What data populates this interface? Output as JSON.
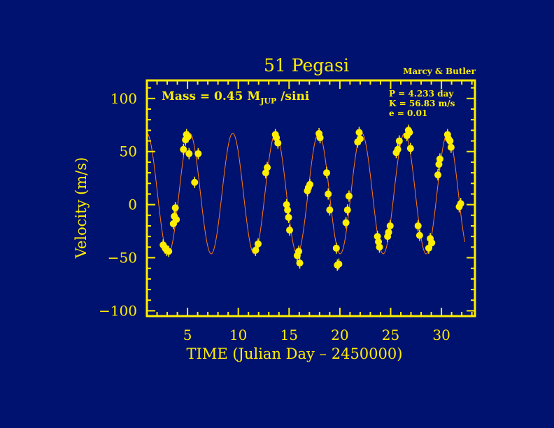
{
  "colors": {
    "background": "#001270",
    "axes": "#ffee00",
    "points": "#ffee00",
    "fit_curve": "#ff7a10"
  },
  "header": {
    "title": "51 Pegasi",
    "credit": "Marcy & Butler"
  },
  "annotations": {
    "mass_text": "Mass = 0.45 M",
    "mass_subscript": "JUP",
    "mass_suffix": " /sini",
    "period": "P = 4.233 day",
    "amplitude": "K = 56.83 m/s",
    "eccentricity": "e = 0.01"
  },
  "chart_data": {
    "type": "scatter",
    "title": "51 Pegasi",
    "xlabel": "TIME  (Julian Day – 2450000)",
    "ylabel": "Velocity  (m/s)",
    "xlim": [
      1,
      33.3
    ],
    "ylim": [
      -105,
      117
    ],
    "x_ticks": [
      5,
      10,
      15,
      20,
      25,
      30
    ],
    "y_ticks": [
      -100,
      -50,
      0,
      50,
      100
    ],
    "x_tick_labels": [
      "5",
      "10",
      "15",
      "20",
      "25",
      "30"
    ],
    "y_tick_labels": [
      "−100",
      "−50",
      "0",
      "50",
      "100"
    ],
    "legend": "none",
    "grid": false,
    "fit": {
      "model": "sinusoid",
      "period_days": 4.233,
      "semi_amplitude": 56.83,
      "offset": 10.5,
      "peak_time": 9.45,
      "x_range": [
        1.0,
        32.3
      ]
    },
    "series": [
      {
        "x": [
          2.6,
          2.8,
          2.95,
          3.15,
          3.6,
          3.7,
          3.8,
          3.9,
          4.6,
          4.8,
          4.9,
          5.05,
          5.15,
          5.7,
          6.05,
          11.7,
          11.95,
          12.7,
          12.85,
          13.65,
          13.75,
          13.9,
          14.75,
          14.85,
          14.95,
          15.05,
          15.8,
          15.95,
          16.05,
          16.8,
          16.9,
          17.05,
          17.95,
          18.05,
          18.7,
          18.85,
          19.0,
          19.65,
          19.75,
          19.9,
          20.6,
          20.75,
          20.9,
          21.75,
          21.9,
          22.0,
          23.7,
          23.8,
          23.9,
          24.7,
          24.8,
          24.95,
          25.55,
          25.7,
          25.85,
          26.6,
          26.75,
          26.85,
          26.95,
          27.7,
          27.85,
          28.75,
          28.9,
          29.05,
          29.65,
          29.75,
          29.85,
          30.6,
          30.7,
          30.85,
          30.95,
          31.75,
          31.9
        ],
        "y": [
          -38,
          -41,
          -43,
          -44,
          -18,
          -11,
          -3,
          -14,
          52,
          61,
          66,
          64,
          48,
          21,
          48,
          -43,
          -37,
          30,
          35,
          66,
          63,
          58,
          0,
          -5,
          -12,
          -24,
          -48,
          -44,
          -55,
          13,
          16,
          19,
          67,
          63,
          30,
          10,
          -5,
          -41,
          -57,
          -56,
          -17,
          -5,
          8,
          59,
          68,
          62,
          -30,
          -35,
          -40,
          -30,
          -26,
          -20,
          49,
          52,
          60,
          65,
          70,
          68,
          53,
          -20,
          -29,
          -41,
          -32,
          -36,
          28,
          38,
          43,
          66,
          62,
          60,
          54,
          -2,
          1
        ]
      }
    ]
  }
}
